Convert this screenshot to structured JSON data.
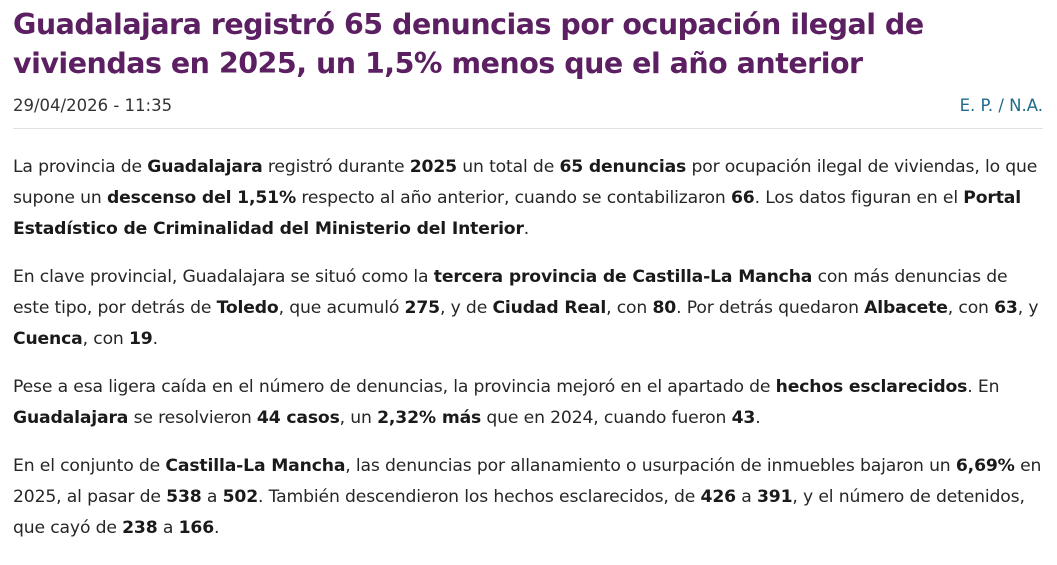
{
  "article": {
    "headline": "Guadalajara registró 65 denuncias por ocupación ilegal de viviendas en 2025, un 1,5% menos que el año anterior",
    "date": "29/04/2026 - 11:35",
    "author": "E. P. / N.A.",
    "paragraphs": [
      [
        {
          "t": "La provincia de "
        },
        {
          "t": "Guadalajara",
          "b": true
        },
        {
          "t": " registró durante "
        },
        {
          "t": "2025",
          "b": true
        },
        {
          "t": " un total de "
        },
        {
          "t": "65 denuncias",
          "b": true
        },
        {
          "t": " por ocupación ilegal de viviendas, lo que supone un "
        },
        {
          "t": "descenso del 1,51%",
          "b": true
        },
        {
          "t": " respecto al año anterior, cuando se contabilizaron "
        },
        {
          "t": "66",
          "b": true
        },
        {
          "t": ". Los datos figuran en el "
        },
        {
          "t": "Portal Estadístico de Criminalidad del Ministerio del Interior",
          "b": true
        },
        {
          "t": "."
        }
      ],
      [
        {
          "t": "En clave provincial, Guadalajara se situó como la "
        },
        {
          "t": "tercera provincia de Castilla-La Mancha",
          "b": true
        },
        {
          "t": " con más denuncias de este tipo, por detrás de "
        },
        {
          "t": "Toledo",
          "b": true
        },
        {
          "t": ", que acumuló "
        },
        {
          "t": "275",
          "b": true
        },
        {
          "t": ", y de "
        },
        {
          "t": "Ciudad Real",
          "b": true
        },
        {
          "t": ", con "
        },
        {
          "t": "80",
          "b": true
        },
        {
          "t": ". Por detrás quedaron "
        },
        {
          "t": "Albacete",
          "b": true
        },
        {
          "t": ", con "
        },
        {
          "t": "63",
          "b": true
        },
        {
          "t": ", y "
        },
        {
          "t": "Cuenca",
          "b": true
        },
        {
          "t": ", con "
        },
        {
          "t": "19",
          "b": true
        },
        {
          "t": "."
        }
      ],
      [
        {
          "t": "Pese a esa ligera caída en el número de denuncias, la provincia mejoró en el apartado de "
        },
        {
          "t": "hechos esclarecidos",
          "b": true
        },
        {
          "t": ". En "
        },
        {
          "t": "Guadalajara",
          "b": true
        },
        {
          "t": " se resolvieron "
        },
        {
          "t": "44 casos",
          "b": true
        },
        {
          "t": ", un "
        },
        {
          "t": "2,32% más",
          "b": true
        },
        {
          "t": " que en 2024, cuando fueron "
        },
        {
          "t": "43",
          "b": true
        },
        {
          "t": "."
        }
      ],
      [
        {
          "t": "En el conjunto de "
        },
        {
          "t": "Castilla-La Mancha",
          "b": true
        },
        {
          "t": ", las denuncias por allanamiento o usurpación de inmuebles bajaron un "
        },
        {
          "t": "6,69%",
          "b": true
        },
        {
          "t": " en 2025, al pasar de "
        },
        {
          "t": "538",
          "b": true
        },
        {
          "t": " a "
        },
        {
          "t": "502",
          "b": true
        },
        {
          "t": ". También descendieron los hechos esclarecidos, de "
        },
        {
          "t": "426",
          "b": true
        },
        {
          "t": " a "
        },
        {
          "t": "391",
          "b": true
        },
        {
          "t": ", y el número de detenidos, que cayó de "
        },
        {
          "t": "238",
          "b": true
        },
        {
          "t": " a "
        },
        {
          "t": "166",
          "b": true
        },
        {
          "t": "."
        }
      ]
    ]
  },
  "colors": {
    "headline": "#5b1f62",
    "author_link": "#1f6a8a",
    "divider": "#e2e2e2"
  }
}
